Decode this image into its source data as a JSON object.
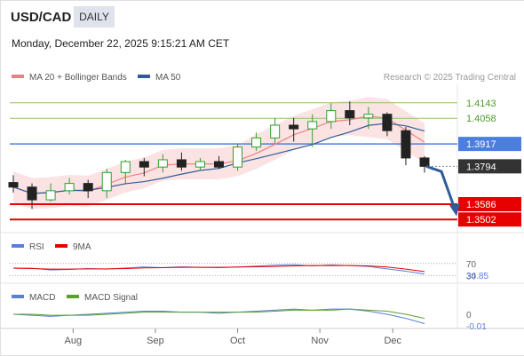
{
  "header": {
    "pair": "USD/CAD",
    "timeframe": "DAILY",
    "timestamp": "Monday, December 22, 2025 9:15:21 AM CET",
    "credit": "Research © 2025 Trading Central"
  },
  "legend": {
    "ma20_bb": "MA 20 + Bollinger Bands",
    "ma50": "MA 50",
    "rsi": "RSI",
    "rsi_ma": "9MA",
    "macd": "MACD",
    "macd_signal": "MACD Signal"
  },
  "colors": {
    "candle_up": "#2e9e2e",
    "candle_down": "#222222",
    "ma20": "#f08080",
    "ma50": "#2e5c99",
    "bb_fill": "#fbdada",
    "pivot_line": "#4a7fe0",
    "resistance": "#8fc46a",
    "support": "#e60000",
    "current": "#333333",
    "rsi": "#5b7fd6",
    "rsi_ma": "#e60000",
    "macd": "#5b7fd6",
    "macd_signal": "#5aa02c",
    "arrow": "#2e5c99"
  },
  "chart_data": [
    {
      "type": "candlestick",
      "title": "USD/CAD",
      "x_ticks": [
        "Aug",
        "Sep",
        "Oct",
        "Nov",
        "Dec"
      ],
      "ylim": [
        1.343,
        1.422
      ],
      "ohlc_weekly_approx": [
        {
          "date": "2025-07-14",
          "o": 1.3705,
          "h": 1.3745,
          "l": 1.365,
          "c": 1.368
        },
        {
          "date": "2025-07-21",
          "o": 1.368,
          "h": 1.37,
          "l": 1.356,
          "c": 1.361
        },
        {
          "date": "2025-07-28",
          "o": 1.361,
          "h": 1.37,
          "l": 1.36,
          "c": 1.366
        },
        {
          "date": "2025-08-04",
          "o": 1.366,
          "h": 1.373,
          "l": 1.364,
          "c": 1.37
        },
        {
          "date": "2025-08-11",
          "o": 1.37,
          "h": 1.372,
          "l": 1.362,
          "c": 1.366
        },
        {
          "date": "2025-08-18",
          "o": 1.366,
          "h": 1.378,
          "l": 1.362,
          "c": 1.376
        },
        {
          "date": "2025-08-25",
          "o": 1.376,
          "h": 1.383,
          "l": 1.37,
          "c": 1.382
        },
        {
          "date": "2025-09-01",
          "o": 1.382,
          "h": 1.384,
          "l": 1.374,
          "c": 1.379
        },
        {
          "date": "2025-09-08",
          "o": 1.379,
          "h": 1.386,
          "l": 1.376,
          "c": 1.383
        },
        {
          "date": "2025-09-15",
          "o": 1.383,
          "h": 1.387,
          "l": 1.377,
          "c": 1.379
        },
        {
          "date": "2025-09-22",
          "o": 1.379,
          "h": 1.384,
          "l": 1.377,
          "c": 1.382
        },
        {
          "date": "2025-09-29",
          "o": 1.382,
          "h": 1.385,
          "l": 1.378,
          "c": 1.379
        },
        {
          "date": "2025-10-06",
          "o": 1.379,
          "h": 1.392,
          "l": 1.377,
          "c": 1.39
        },
        {
          "date": "2025-10-13",
          "o": 1.39,
          "h": 1.398,
          "l": 1.388,
          "c": 1.395
        },
        {
          "date": "2025-10-20",
          "o": 1.395,
          "h": 1.406,
          "l": 1.392,
          "c": 1.402
        },
        {
          "date": "2025-10-27",
          "o": 1.402,
          "h": 1.406,
          "l": 1.393,
          "c": 1.4
        },
        {
          "date": "2025-11-03",
          "o": 1.4,
          "h": 1.408,
          "l": 1.39,
          "c": 1.404
        },
        {
          "date": "2025-11-10",
          "o": 1.404,
          "h": 1.414,
          "l": 1.4,
          "c": 1.41
        },
        {
          "date": "2025-11-17",
          "o": 1.41,
          "h": 1.415,
          "l": 1.402,
          "c": 1.406
        },
        {
          "date": "2025-11-24",
          "o": 1.406,
          "h": 1.412,
          "l": 1.4,
          "c": 1.408
        },
        {
          "date": "2025-12-01",
          "o": 1.408,
          "h": 1.409,
          "l": 1.396,
          "c": 1.399
        },
        {
          "date": "2025-12-08",
          "o": 1.399,
          "h": 1.401,
          "l": 1.38,
          "c": 1.384
        },
        {
          "date": "2025-12-15",
          "o": 1.384,
          "h": 1.385,
          "l": 1.376,
          "c": 1.3794
        }
      ],
      "ma20_end": 1.388,
      "ma50_end": 1.395,
      "levels": [
        {
          "label": "1.4143",
          "value": 1.4143,
          "kind": "resistance"
        },
        {
          "label": "1.4058",
          "value": 1.4058,
          "kind": "resistance"
        },
        {
          "label": "1.3917",
          "value": 1.3917,
          "kind": "pivot"
        },
        {
          "label": "1.3794",
          "value": 1.3794,
          "kind": "current"
        },
        {
          "label": "1.3586",
          "value": 1.3586,
          "kind": "support"
        },
        {
          "label": "1.3502",
          "value": 1.3502,
          "kind": "support"
        }
      ],
      "forecast_path": [
        1.3794,
        1.379,
        1.356
      ]
    },
    {
      "type": "line",
      "title": "RSI",
      "ylim": [
        10,
        90
      ],
      "reference_lines": [
        {
          "label": "70",
          "value": 70
        },
        {
          "label": "30",
          "value": 30
        }
      ],
      "last_value_label": "34.85",
      "series": [
        {
          "name": "RSI",
          "values": [
            55,
            54,
            48,
            50,
            53,
            51,
            55,
            58,
            56,
            59,
            57,
            56,
            58,
            61,
            64,
            66,
            62,
            65,
            63,
            60,
            52,
            44,
            34.85
          ]
        },
        {
          "name": "9MA",
          "values": [
            54,
            53,
            51,
            51,
            52,
            52,
            53,
            55,
            56,
            57,
            57,
            57,
            58,
            59,
            60,
            62,
            63,
            63,
            63,
            62,
            58,
            51,
            43
          ]
        }
      ]
    },
    {
      "type": "line",
      "title": "MACD",
      "ylim": [
        -0.012,
        0.012
      ],
      "reference_lines": [
        {
          "label": "0",
          "value": 0
        }
      ],
      "last_value_label": "-0.01",
      "series": [
        {
          "name": "MACD",
          "values": [
            0.0,
            -0.001,
            -0.002,
            -0.001,
            0.0,
            0.001,
            0.002,
            0.003,
            0.003,
            0.002,
            0.002,
            0.001,
            0.002,
            0.003,
            0.004,
            0.005,
            0.004,
            0.005,
            0.005,
            0.003,
            0.0,
            -0.004,
            -0.009
          ]
        },
        {
          "name": "MACD Signal",
          "values": [
            0.0,
            0.0,
            -0.001,
            -0.001,
            -0.001,
            0.0,
            0.001,
            0.002,
            0.002,
            0.002,
            0.002,
            0.002,
            0.002,
            0.002,
            0.003,
            0.004,
            0.004,
            0.004,
            0.005,
            0.004,
            0.003,
            0.0,
            -0.004
          ]
        }
      ]
    }
  ]
}
